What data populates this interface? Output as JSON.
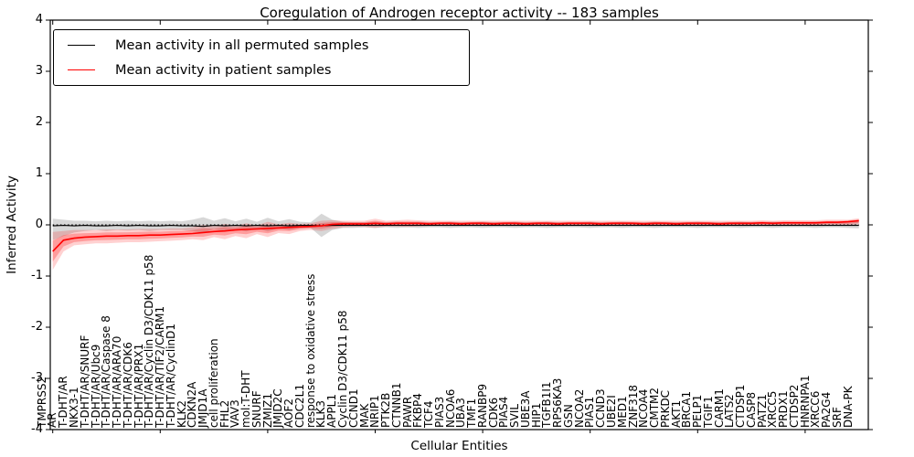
{
  "chart_data": {
    "type": "line",
    "title": "Coregulation of Androgen receptor activity -- 183 samples",
    "xlabel": "Cellular Entities",
    "ylabel": "Inferred Activity",
    "ylim": [
      -4,
      4
    ],
    "yticks": [
      4,
      3,
      2,
      1,
      0,
      -1,
      -2,
      -3,
      -4
    ],
    "grid": false,
    "legend_position": "upper left",
    "zero_line": {
      "style": "dotted",
      "color": "#000000",
      "y": 0
    },
    "legend": [
      {
        "label": "Mean activity in all permuted samples",
        "color": "#000000"
      },
      {
        "label": "Mean activity in patient samples",
        "color": "#ff0000"
      }
    ],
    "categories": [
      "TMPRSS2",
      "AR",
      "T-DHT/AR",
      "NKX3-1",
      "T-DHT/AR/SNURF",
      "T-DHT/AR/Ubc9",
      "T-DHT/AR/Caspase 8",
      "T-DHT/AR/ARA70",
      "T-DHT/AR/CDK6",
      "T-DHT/AR/PRX1",
      "T-DHT/AR/Cyclin D3/CDK11 p58",
      "T-DHT/AR/TIF2/CARM1",
      "T-DHT/AR/CyclinD1",
      "KLK2",
      "CDKN2A",
      "JMJD1A",
      "cell proliferation",
      "FHL2",
      "VAV3",
      "mol:T-DHT",
      "SNURF",
      "ZMIZ1",
      "JMJD2C",
      "AOF2",
      "CDC2L1",
      "response to oxidative stress",
      "KLK3",
      "APPL1",
      "Cyclin D3/CDK11 p58",
      "CCND1",
      "MAK",
      "NRIP1",
      "PTK2B",
      "CTNNB1",
      "PAWR",
      "FKBP4",
      "TCF4",
      "PIAS3",
      "NCOA6",
      "UBA3",
      "TMF1",
      "RANBP9",
      "CDK6",
      "PIAS4",
      "SVIL",
      "UBE3A",
      "HIP1",
      "TGFB1I1",
      "RPS6KA3",
      "GSN",
      "NCOA2",
      "PIAS1",
      "CCND3",
      "UBE2I",
      "MED1",
      "ZNF318",
      "NCOA4",
      "CMTM2",
      "PRKDC",
      "AKT1",
      "BRCA1",
      "PELP1",
      "TGIF1",
      "CARM1",
      "LATS2",
      "CTDSP1",
      "CASP8",
      "PATZ1",
      "XRCC5",
      "PRDX1",
      "CTDSP2",
      "HNRNPA1",
      "XRCC6",
      "PA2G4",
      "SRF",
      "DNA-PK"
    ],
    "series": [
      {
        "name": "Mean activity in all permuted samples",
        "color": "#000000",
        "band_color": "#8c8c8c",
        "values": [
          -0.02,
          -0.01,
          -0.02,
          -0.01,
          -0.02,
          -0.02,
          -0.01,
          -0.02,
          -0.01,
          -0.02,
          -0.02,
          -0.01,
          -0.02,
          -0.02,
          -0.03,
          -0.01,
          -0.02,
          -0.01,
          -0.02,
          -0.01,
          -0.02,
          -0.01,
          -0.02,
          -0.01,
          -0.01,
          -0.02,
          -0.01,
          -0.01,
          -0.01,
          -0.01,
          -0.01,
          -0.01,
          -0.01,
          -0.01,
          -0.01,
          -0.01,
          -0.01,
          -0.01,
          -0.01,
          -0.01,
          -0.01,
          -0.01,
          -0.01,
          -0.01,
          -0.01,
          -0.01,
          -0.01,
          -0.01,
          -0.01,
          -0.01,
          -0.01,
          -0.01,
          -0.01,
          -0.01,
          -0.01,
          -0.01,
          -0.01,
          -0.01,
          -0.01,
          -0.01,
          -0.01,
          -0.01,
          -0.01,
          -0.01,
          -0.01,
          -0.01,
          -0.01,
          -0.01,
          -0.01,
          -0.01,
          -0.01,
          -0.01,
          -0.01,
          -0.01,
          -0.01,
          -0.01
        ],
        "band_upper": [
          0.12,
          0.1,
          0.08,
          0.08,
          0.07,
          0.08,
          0.07,
          0.08,
          0.07,
          0.08,
          0.07,
          0.08,
          0.07,
          0.1,
          0.15,
          0.08,
          0.13,
          0.07,
          0.12,
          0.06,
          0.14,
          0.07,
          0.11,
          0.06,
          0.05,
          0.22,
          0.1,
          0.06,
          0.05,
          0.05,
          0.06,
          0.05,
          0.06,
          0.05,
          0.06,
          0.05,
          0.05,
          0.06,
          0.05,
          0.05,
          0.06,
          0.05,
          0.05,
          0.06,
          0.05,
          0.05,
          0.06,
          0.05,
          0.05,
          0.05,
          0.06,
          0.05,
          0.05,
          0.06,
          0.05,
          0.05,
          0.06,
          0.05,
          0.05,
          0.05,
          0.06,
          0.05,
          0.05,
          0.05,
          0.06,
          0.05,
          0.05,
          0.06,
          0.05,
          0.05,
          0.05,
          0.06,
          0.05,
          0.05,
          0.06,
          0.07
        ],
        "band_lower": [
          -0.3,
          -0.22,
          -0.15,
          -0.12,
          -0.1,
          -0.12,
          -0.1,
          -0.11,
          -0.1,
          -0.12,
          -0.1,
          -0.1,
          -0.1,
          -0.12,
          -0.16,
          -0.08,
          -0.14,
          -0.08,
          -0.13,
          -0.07,
          -0.13,
          -0.07,
          -0.1,
          -0.06,
          -0.06,
          -0.24,
          -0.1,
          -0.06,
          -0.06,
          -0.05,
          -0.06,
          -0.05,
          -0.06,
          -0.05,
          -0.06,
          -0.05,
          -0.05,
          -0.06,
          -0.05,
          -0.05,
          -0.06,
          -0.05,
          -0.05,
          -0.06,
          -0.05,
          -0.05,
          -0.06,
          -0.05,
          -0.05,
          -0.05,
          -0.06,
          -0.05,
          -0.05,
          -0.06,
          -0.05,
          -0.05,
          -0.06,
          -0.05,
          -0.05,
          -0.05,
          -0.06,
          -0.05,
          -0.05,
          -0.05,
          -0.06,
          -0.05,
          -0.05,
          -0.06,
          -0.05,
          -0.05,
          -0.05,
          -0.06,
          -0.05,
          -0.05,
          -0.06,
          -0.07
        ]
      },
      {
        "name": "Mean activity in patient samples",
        "color": "#ff0000",
        "band_color": "#ff0000",
        "values": [
          -0.52,
          -0.3,
          -0.26,
          -0.24,
          -0.23,
          -0.22,
          -0.22,
          -0.21,
          -0.21,
          -0.2,
          -0.2,
          -0.19,
          -0.18,
          -0.17,
          -0.15,
          -0.13,
          -0.12,
          -0.1,
          -0.09,
          -0.08,
          -0.07,
          -0.06,
          -0.05,
          -0.04,
          -0.03,
          -0.02,
          0.01,
          0.02,
          0.02,
          0.02,
          0.03,
          0.02,
          0.03,
          0.03,
          0.03,
          0.02,
          0.03,
          0.03,
          0.02,
          0.03,
          0.03,
          0.02,
          0.03,
          0.03,
          0.02,
          0.03,
          0.03,
          0.02,
          0.03,
          0.03,
          0.03,
          0.02,
          0.03,
          0.03,
          0.03,
          0.02,
          0.03,
          0.03,
          0.02,
          0.03,
          0.03,
          0.03,
          0.02,
          0.03,
          0.03,
          0.03,
          0.04,
          0.03,
          0.04,
          0.04,
          0.04,
          0.04,
          0.05,
          0.05,
          0.06,
          0.08
        ],
        "band_upper": [
          -0.14,
          -0.12,
          -0.1,
          -0.1,
          -0.1,
          -0.09,
          -0.09,
          -0.09,
          -0.08,
          -0.08,
          -0.08,
          -0.07,
          -0.07,
          -0.05,
          0.0,
          -0.03,
          0.02,
          -0.02,
          0.03,
          -0.01,
          0.06,
          0.01,
          0.04,
          0.02,
          0.03,
          0.08,
          0.09,
          0.08,
          0.08,
          0.08,
          0.12,
          0.08,
          0.09,
          0.1,
          0.09,
          0.08,
          0.08,
          0.08,
          0.08,
          0.08,
          0.08,
          0.08,
          0.08,
          0.08,
          0.08,
          0.08,
          0.08,
          0.08,
          0.08,
          0.08,
          0.08,
          0.08,
          0.08,
          0.08,
          0.08,
          0.08,
          0.08,
          0.08,
          0.08,
          0.08,
          0.08,
          0.08,
          0.08,
          0.08,
          0.08,
          0.08,
          0.09,
          0.08,
          0.09,
          0.09,
          0.09,
          0.09,
          0.1,
          0.1,
          0.1,
          0.13
        ],
        "band_lower": [
          -0.88,
          -0.52,
          -0.4,
          -0.38,
          -0.36,
          -0.36,
          -0.35,
          -0.34,
          -0.34,
          -0.33,
          -0.32,
          -0.31,
          -0.3,
          -0.28,
          -0.3,
          -0.24,
          -0.28,
          -0.22,
          -0.26,
          -0.18,
          -0.24,
          -0.16,
          -0.18,
          -0.12,
          -0.1,
          -0.12,
          -0.08,
          -0.05,
          -0.04,
          -0.04,
          -0.06,
          -0.03,
          -0.03,
          -0.04,
          -0.03,
          -0.02,
          -0.02,
          -0.02,
          -0.02,
          -0.02,
          -0.02,
          -0.02,
          -0.02,
          -0.02,
          -0.02,
          -0.02,
          -0.02,
          -0.02,
          -0.02,
          -0.02,
          -0.02,
          -0.02,
          -0.02,
          -0.02,
          -0.02,
          -0.02,
          -0.02,
          -0.02,
          -0.02,
          -0.02,
          -0.02,
          -0.02,
          -0.02,
          -0.02,
          -0.02,
          -0.02,
          -0.02,
          -0.02,
          -0.02,
          -0.02,
          -0.02,
          -0.02,
          -0.01,
          -0.01,
          -0.01,
          0.01
        ]
      }
    ]
  }
}
